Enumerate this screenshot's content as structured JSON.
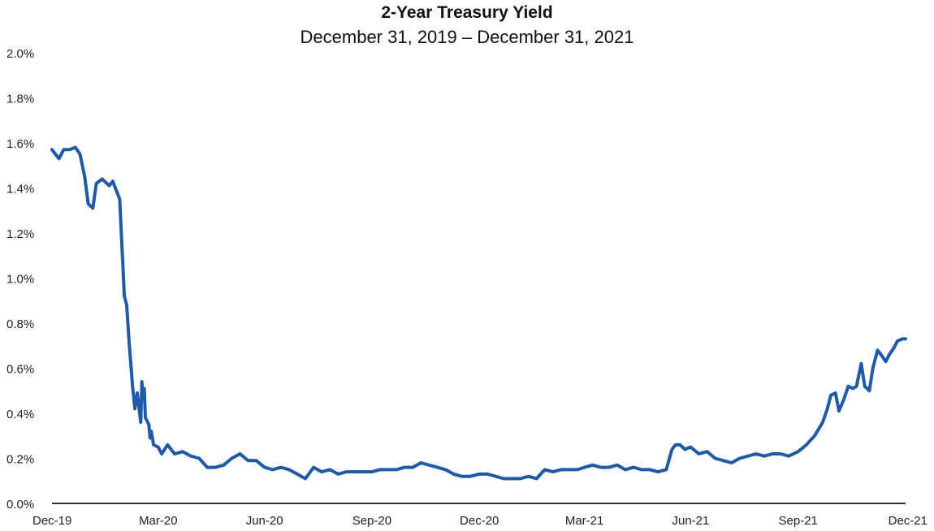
{
  "chart_data": {
    "type": "line",
    "title": "2-Year Treasury Yield",
    "subtitle": "December 31, 2019 – December 31, 2021",
    "xlabel": "",
    "ylabel": "",
    "ylim": [
      0,
      2.0
    ],
    "y_ticks": [
      {
        "value": 0.0,
        "label": "0.0%"
      },
      {
        "value": 0.2,
        "label": "0.2%"
      },
      {
        "value": 0.4,
        "label": "0.4%"
      },
      {
        "value": 0.6,
        "label": "0.6%"
      },
      {
        "value": 0.8,
        "label": "0.8%"
      },
      {
        "value": 1.0,
        "label": "1.0%"
      },
      {
        "value": 1.2,
        "label": "1.2%"
      },
      {
        "value": 1.4,
        "label": "1.4%"
      },
      {
        "value": 1.6,
        "label": "1.6%"
      },
      {
        "value": 1.8,
        "label": "1.8%"
      },
      {
        "value": 2.0,
        "label": "2.0%"
      }
    ],
    "xlim": [
      "2019-12-31",
      "2021-12-31"
    ],
    "x_ticks": [
      {
        "date": "2019-12-31",
        "label": "Dec-19"
      },
      {
        "date": "2020-03-31",
        "label": "Mar-20"
      },
      {
        "date": "2020-06-30",
        "label": "Jun-20"
      },
      {
        "date": "2020-09-30",
        "label": "Sep-20"
      },
      {
        "date": "2020-12-31",
        "label": "Dec-20"
      },
      {
        "date": "2021-03-31",
        "label": "Mar-21"
      },
      {
        "date": "2021-06-30",
        "label": "Jun-21"
      },
      {
        "date": "2021-09-30",
        "label": "Sep-21"
      },
      {
        "date": "2021-12-31",
        "label": "Dec-21"
      }
    ],
    "grid": false,
    "line_color": "#1f5aa6",
    "axis_color": "#333333",
    "series": [
      {
        "x": [
          "2019-12-31",
          "2020-01-03",
          "2020-01-06",
          "2020-01-10",
          "2020-01-15",
          "2020-01-20",
          "2020-01-24",
          "2020-01-28",
          "2020-01-31",
          "2020-02-04",
          "2020-02-07",
          "2020-02-12",
          "2020-02-18",
          "2020-02-21",
          "2020-02-24",
          "2020-02-27",
          "2020-03-02",
          "2020-03-04",
          "2020-03-06",
          "2020-03-09",
          "2020-03-11",
          "2020-03-13",
          "2020-03-16",
          "2020-03-17",
          "2020-03-18",
          "2020-03-19",
          "2020-03-20",
          "2020-03-23",
          "2020-03-24",
          "2020-03-25",
          "2020-03-27",
          "2020-03-31",
          "2020-04-03",
          "2020-04-08",
          "2020-04-14",
          "2020-04-21",
          "2020-04-28",
          "2020-05-05",
          "2020-05-12",
          "2020-05-19",
          "2020-05-26",
          "2020-06-02",
          "2020-06-09",
          "2020-06-16",
          "2020-06-23",
          "2020-06-30",
          "2020-07-07",
          "2020-07-14",
          "2020-07-21",
          "2020-07-28",
          "2020-08-04",
          "2020-08-11",
          "2020-08-18",
          "2020-08-25",
          "2020-09-01",
          "2020-09-08",
          "2020-09-15",
          "2020-09-22",
          "2020-09-30",
          "2020-10-07",
          "2020-10-14",
          "2020-10-21",
          "2020-10-28",
          "2020-11-04",
          "2020-11-11",
          "2020-11-18",
          "2020-11-25",
          "2020-12-02",
          "2020-12-09",
          "2020-12-16",
          "2020-12-23",
          "2020-12-31",
          "2021-01-07",
          "2021-01-14",
          "2021-01-21",
          "2021-01-28",
          "2021-02-04",
          "2021-02-11",
          "2021-02-18",
          "2021-02-25",
          "2021-03-04",
          "2021-03-11",
          "2021-03-18",
          "2021-03-25",
          "2021-03-31",
          "2021-04-07",
          "2021-04-14",
          "2021-04-21",
          "2021-04-28",
          "2021-05-05",
          "2021-05-12",
          "2021-05-19",
          "2021-05-26",
          "2021-06-02",
          "2021-06-09",
          "2021-06-14",
          "2021-06-17",
          "2021-06-21",
          "2021-06-25",
          "2021-06-30",
          "2021-07-07",
          "2021-07-14",
          "2021-07-21",
          "2021-07-28",
          "2021-08-04",
          "2021-08-11",
          "2021-08-18",
          "2021-08-25",
          "2021-09-01",
          "2021-09-08",
          "2021-09-15",
          "2021-09-22",
          "2021-09-30",
          "2021-10-07",
          "2021-10-14",
          "2021-10-21",
          "2021-10-25",
          "2021-10-28",
          "2021-11-01",
          "2021-11-04",
          "2021-11-08",
          "2021-11-12",
          "2021-11-16",
          "2021-11-19",
          "2021-11-23",
          "2021-11-26",
          "2021-11-30",
          "2021-12-03",
          "2021-12-07",
          "2021-12-10",
          "2021-12-14",
          "2021-12-17",
          "2021-12-21",
          "2021-12-24",
          "2021-12-28",
          "2021-12-31"
        ],
        "values": [
          1.57,
          1.55,
          1.53,
          1.57,
          1.57,
          1.58,
          1.55,
          1.45,
          1.33,
          1.31,
          1.42,
          1.44,
          1.41,
          1.43,
          1.39,
          1.35,
          0.92,
          0.88,
          0.72,
          0.52,
          0.42,
          0.49,
          0.36,
          0.54,
          0.47,
          0.51,
          0.38,
          0.35,
          0.29,
          0.32,
          0.26,
          0.25,
          0.22,
          0.26,
          0.22,
          0.23,
          0.21,
          0.2,
          0.16,
          0.16,
          0.17,
          0.2,
          0.22,
          0.19,
          0.19,
          0.16,
          0.15,
          0.16,
          0.15,
          0.13,
          0.11,
          0.16,
          0.14,
          0.15,
          0.13,
          0.14,
          0.14,
          0.14,
          0.14,
          0.15,
          0.15,
          0.15,
          0.16,
          0.16,
          0.18,
          0.17,
          0.16,
          0.15,
          0.13,
          0.12,
          0.12,
          0.13,
          0.13,
          0.12,
          0.11,
          0.11,
          0.11,
          0.12,
          0.11,
          0.15,
          0.14,
          0.15,
          0.15,
          0.15,
          0.16,
          0.17,
          0.16,
          0.16,
          0.17,
          0.15,
          0.16,
          0.15,
          0.15,
          0.14,
          0.15,
          0.24,
          0.26,
          0.26,
          0.24,
          0.25,
          0.22,
          0.23,
          0.2,
          0.19,
          0.18,
          0.2,
          0.21,
          0.22,
          0.21,
          0.22,
          0.22,
          0.21,
          0.23,
          0.26,
          0.3,
          0.36,
          0.42,
          0.48,
          0.49,
          0.41,
          0.46,
          0.52,
          0.51,
          0.52,
          0.62,
          0.52,
          0.5,
          0.6,
          0.68,
          0.66,
          0.63,
          0.66,
          0.69,
          0.72,
          0.73,
          0.73
        ]
      }
    ]
  }
}
